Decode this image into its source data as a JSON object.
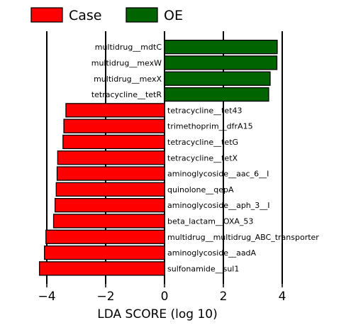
{
  "chart_data": {
    "type": "bar",
    "orientation": "horizontal",
    "xlabel": "LDA SCORE (log 10)",
    "xlim": [
      -4.5,
      4.5
    ],
    "xticks": [
      -4,
      -2,
      0,
      2,
      4
    ],
    "xtick_labels": [
      "−4",
      "−2",
      "0",
      "2",
      "4"
    ],
    "gridlines": "vertical lines at ticks",
    "legend": {
      "placement": "top-left",
      "entries": [
        {
          "name": "Case",
          "color": "#ff0000"
        },
        {
          "name": "OE",
          "color": "#006400"
        }
      ]
    },
    "series": [
      {
        "name": "Case",
        "color": "#ff0000"
      },
      {
        "name": "OE",
        "color": "#006400"
      }
    ],
    "bars": [
      {
        "label": "multidrug__mdtC",
        "value": 3.83,
        "group": "OE"
      },
      {
        "label": "multidrug__mexW",
        "value": 3.82,
        "group": "OE"
      },
      {
        "label": "multidrug__mexX",
        "value": 3.59,
        "group": "OE"
      },
      {
        "label": "tetracycline__tetR",
        "value": 3.54,
        "group": "OE"
      },
      {
        "label": "tetracycline__tet43",
        "value": -3.35,
        "group": "Case"
      },
      {
        "label": "trimethoprim__dfrA15",
        "value": -3.42,
        "group": "Case"
      },
      {
        "label": "tetracycline__tetG",
        "value": -3.45,
        "group": "Case"
      },
      {
        "label": "tetracycline__tetX",
        "value": -3.63,
        "group": "Case"
      },
      {
        "label": "aminoglycoside__aac_6__I",
        "value": -3.65,
        "group": "Case"
      },
      {
        "label": "quinolone__qepA",
        "value": -3.68,
        "group": "Case"
      },
      {
        "label": "aminoglycoside__aph_3__I",
        "value": -3.72,
        "group": "Case"
      },
      {
        "label": "beta_lactam__OXA_53",
        "value": -3.77,
        "group": "Case"
      },
      {
        "label": "multidrug__multidrug_ABC_transporter",
        "value": -4.03,
        "group": "Case"
      },
      {
        "label": "aminoglycoside__aadA",
        "value": -4.08,
        "group": "Case"
      },
      {
        "label": "sulfonamide__sul1",
        "value": -4.25,
        "group": "Case"
      }
    ]
  }
}
